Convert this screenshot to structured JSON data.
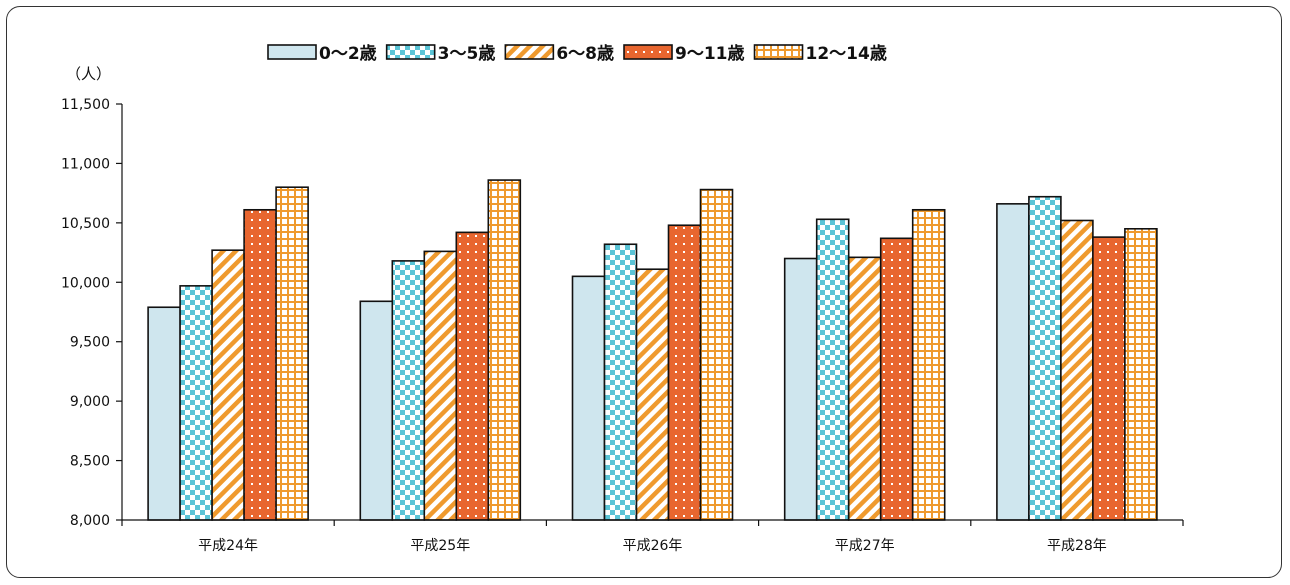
{
  "chart_data": {
    "type": "bar",
    "unit_label": "（人）",
    "categories": [
      "平成24年",
      "平成25年",
      "平成26年",
      "平成27年",
      "平成28年"
    ],
    "series": [
      {
        "name": "0～2歳",
        "values": [
          9790,
          9840,
          10050,
          10200,
          10660
        ],
        "color": "#cfe6ee",
        "pattern": "solid"
      },
      {
        "name": "3～5歳",
        "values": [
          9970,
          10180,
          10320,
          10530,
          10720
        ],
        "color": "#5bc4d6",
        "pattern": "checker"
      },
      {
        "name": "6～8歳",
        "values": [
          10270,
          10260,
          10110,
          10210,
          10520
        ],
        "color": "#ef9a2e",
        "pattern": "diagonal"
      },
      {
        "name": "9～11歳",
        "values": [
          10610,
          10420,
          10480,
          10370,
          10380
        ],
        "color": "#e8662f",
        "pattern": "dots"
      },
      {
        "name": "12～14歳",
        "values": [
          10800,
          10860,
          10780,
          10610,
          10450
        ],
        "color": "#ef9a2e",
        "pattern": "grid"
      }
    ],
    "ylim": [
      8000,
      11500
    ],
    "yticks": [
      "8,000",
      "8,500",
      "9,000",
      "9,500",
      "10,000",
      "10,500",
      "11,000",
      "11,500"
    ],
    "ytick_values": [
      8000,
      8500,
      9000,
      9500,
      10000,
      10500,
      11000,
      11500
    ],
    "legend_position": "top",
    "grid": false
  }
}
